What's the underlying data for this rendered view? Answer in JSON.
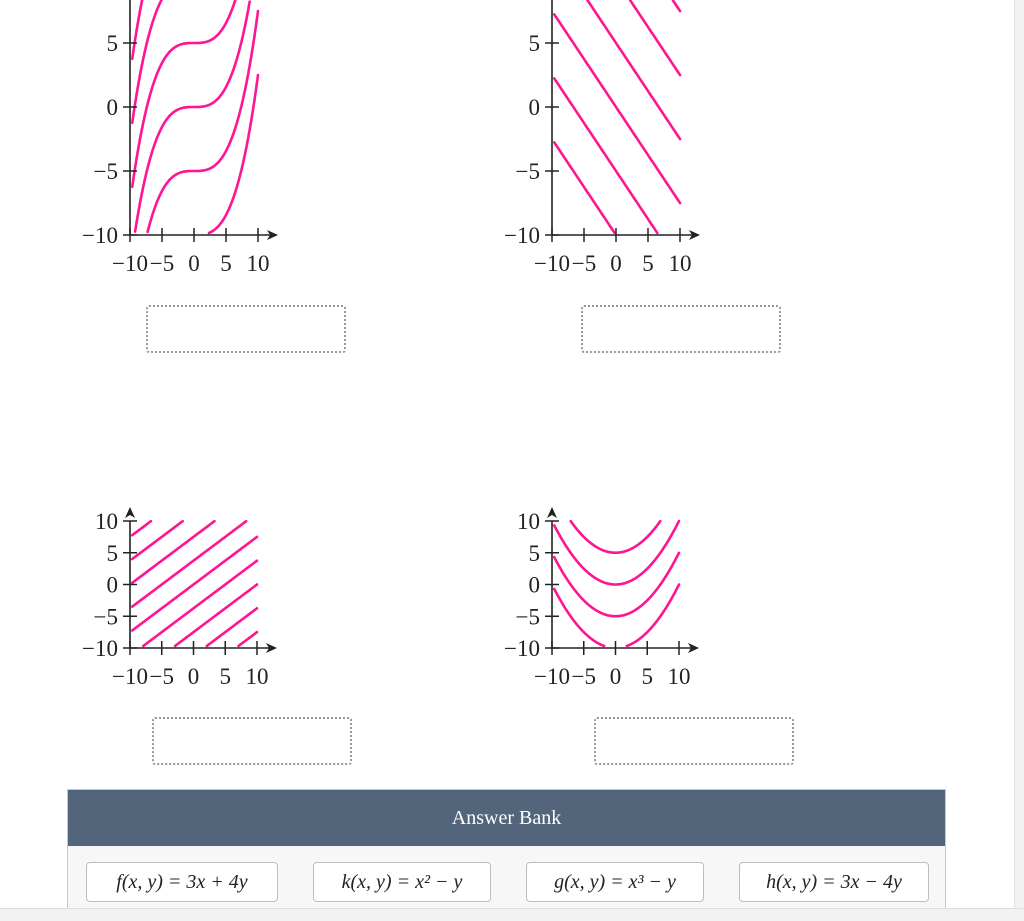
{
  "plots": [
    {
      "id": "A",
      "xticks": [
        -10,
        -5,
        0,
        5,
        10
      ],
      "yticks": [
        -10,
        -5,
        0,
        5
      ],
      "xlim": [
        -10,
        10
      ],
      "ylim": [
        -10,
        10
      ],
      "curve_color": "#ff1493",
      "family": "y = x^3/80 + c",
      "levels": [
        -10,
        -5,
        0,
        5,
        10,
        15
      ]
    },
    {
      "id": "B",
      "xticks": [
        -10,
        -5,
        0,
        5,
        10
      ],
      "yticks": [
        -10,
        -5,
        0,
        5
      ],
      "xlim": [
        -10,
        10
      ],
      "ylim": [
        -10,
        10
      ],
      "curve_color": "#ff1493",
      "family": "3x + 4y = c",
      "levels": [
        -40,
        -20,
        0,
        20,
        40,
        60
      ]
    },
    {
      "id": "C",
      "xticks": [
        -10,
        -5,
        0,
        5,
        10
      ],
      "yticks": [
        -10,
        -5,
        0,
        5,
        10
      ],
      "xlim": [
        -10,
        10
      ],
      "ylim": [
        -10,
        10
      ],
      "curve_color": "#ff1493",
      "family": "3x - 4y = c",
      "levels": [
        -60,
        -45,
        -30,
        -15,
        0,
        15,
        30,
        45,
        60
      ]
    },
    {
      "id": "D",
      "xticks": [
        -10,
        -5,
        0,
        5,
        10
      ],
      "yticks": [
        -10,
        -5,
        0,
        5,
        10
      ],
      "xlim": [
        -10,
        10
      ],
      "ylim": [
        -10,
        10
      ],
      "curve_color": "#ff1493",
      "family": "y = x^2/10 + c",
      "levels": [
        -10,
        -5,
        0,
        5
      ]
    }
  ],
  "answer_bank": {
    "title": "Answer Bank",
    "items": [
      "f(x, y) = 3x + 4y",
      "k(x, y) = x² − y",
      "g(x, y) = x³ − y",
      "h(x, y) = 3x − 4y"
    ]
  }
}
